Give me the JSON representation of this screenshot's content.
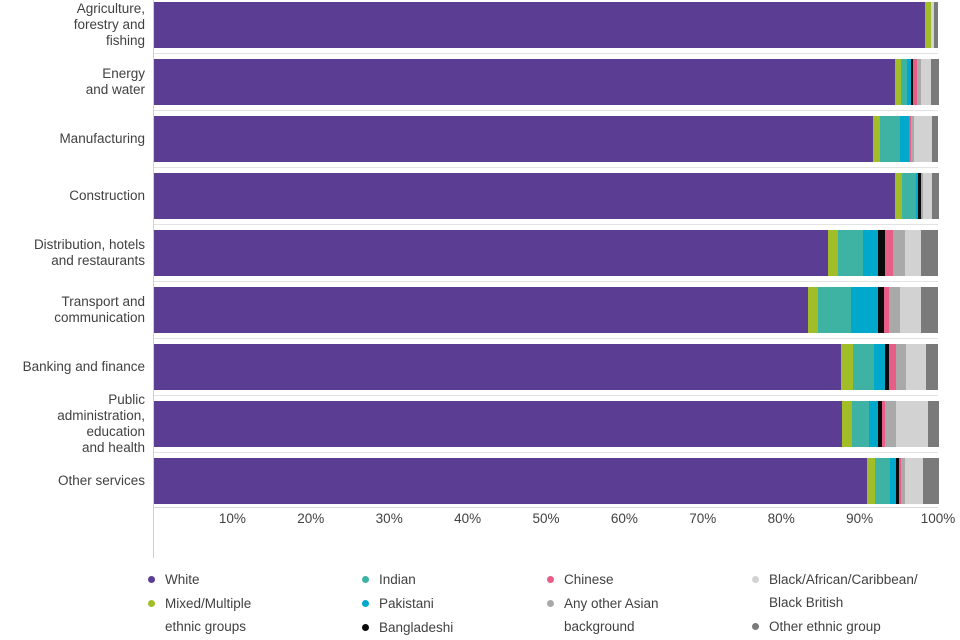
{
  "chart_data": {
    "type": "bar",
    "orientation": "horizontal",
    "stacked": true,
    "unit": "percent",
    "title": "",
    "xlabel": "",
    "ylabel": "",
    "xlim": [
      0,
      100
    ],
    "grid": false,
    "legend_position": "bottom",
    "x_ticks": [
      "10%",
      "20%",
      "30%",
      "40%",
      "50%",
      "60%",
      "70%",
      "80%",
      "90%",
      "100%"
    ],
    "categories": [
      {
        "label": "Agriculture, forestry and fishing",
        "lines": [
          "Agriculture,",
          "forestry and",
          "fishing"
        ]
      },
      {
        "label": "Energy and water",
        "lines": [
          "Energy",
          "and water"
        ]
      },
      {
        "label": "Manufacturing",
        "lines": [
          "Manufacturing"
        ]
      },
      {
        "label": "Construction",
        "lines": [
          "Construction"
        ]
      },
      {
        "label": "Distribution, hotels and restaurants",
        "lines": [
          "Distribution, hotels",
          "and restaurants"
        ]
      },
      {
        "label": "Transport and communication",
        "lines": [
          "Transport and",
          "communication"
        ]
      },
      {
        "label": "Banking and finance",
        "lines": [
          "Banking and finance"
        ]
      },
      {
        "label": "Public administration, education and health",
        "lines": [
          "Public",
          "administration,",
          "education",
          "and health"
        ]
      },
      {
        "label": "Other services",
        "lines": [
          "Other services"
        ]
      }
    ],
    "series": [
      {
        "name": "White",
        "color": "#5b3d94",
        "values": [
          98.3,
          94.5,
          91.7,
          94.5,
          86.0,
          83.4,
          87.6,
          87.8,
          91.0
        ]
      },
      {
        "name": "Mixed/Multiple ethnic groups",
        "color": "#a1bd28",
        "values": [
          0.8,
          0.8,
          0.9,
          0.9,
          1.3,
          1.3,
          1.5,
          1.2,
          1.0
        ]
      },
      {
        "name": "Indian",
        "color": "#3eb3a3",
        "values": [
          0,
          0.8,
          2.6,
          1.8,
          3.1,
          4.2,
          2.7,
          2.2,
          1.9
        ]
      },
      {
        "name": "Pakistani",
        "color": "#00a8cc",
        "values": [
          0,
          0.4,
          1.1,
          0.3,
          1.9,
          3.4,
          1.5,
          1.2,
          0.8
        ]
      },
      {
        "name": "Bangladeshi",
        "color": "#0a0a0a",
        "values": [
          0,
          0.3,
          0,
          0.3,
          1.0,
          0.8,
          0.5,
          0.5,
          0.3
        ]
      },
      {
        "name": "Chinese",
        "color": "#e65e85",
        "values": [
          0,
          0.5,
          0.3,
          0,
          1.0,
          0.6,
          0.9,
          0.3,
          0.3
        ]
      },
      {
        "name": "Any other Asian background",
        "color": "#a9a9a9",
        "values": [
          0,
          0.5,
          0.4,
          0.3,
          1.5,
          1.4,
          1.2,
          1.4,
          0.5
        ]
      },
      {
        "name": "Black/African/Caribbean/Black British",
        "color": "#d2d2d2",
        "values": [
          0.4,
          1.3,
          2.2,
          1.1,
          2.0,
          2.7,
          2.6,
          4.1,
          2.3
        ]
      },
      {
        "name": "Other ethnic group",
        "color": "#7a7a7a",
        "values": [
          0.5,
          1.0,
          0.8,
          0.9,
          2.2,
          2.2,
          1.5,
          1.4,
          2.0
        ]
      }
    ]
  },
  "legend": {
    "columns": [
      {
        "items": [
          {
            "series": "White",
            "lines": [
              "White"
            ]
          },
          {
            "series": "Mixed/Multiple ethnic groups",
            "lines": [
              "Mixed/Multiple",
              "ethnic groups"
            ]
          }
        ]
      },
      {
        "items": [
          {
            "series": "Indian",
            "lines": [
              "Indian"
            ]
          },
          {
            "series": "Pakistani",
            "lines": [
              "Pakistani"
            ]
          },
          {
            "series": "Bangladeshi",
            "lines": [
              "Bangladeshi"
            ]
          }
        ]
      },
      {
        "items": [
          {
            "series": "Chinese",
            "lines": [
              "Chinese"
            ]
          },
          {
            "series": "Any other Asian background",
            "lines": [
              "Any other Asian",
              "background"
            ]
          }
        ]
      },
      {
        "items": [
          {
            "series": "Black/African/Caribbean/Black British",
            "lines": [
              "Black/African/Caribbean/",
              "Black British"
            ]
          },
          {
            "series": "Other ethnic group",
            "lines": [
              "Other ethnic group"
            ]
          }
        ]
      }
    ]
  }
}
